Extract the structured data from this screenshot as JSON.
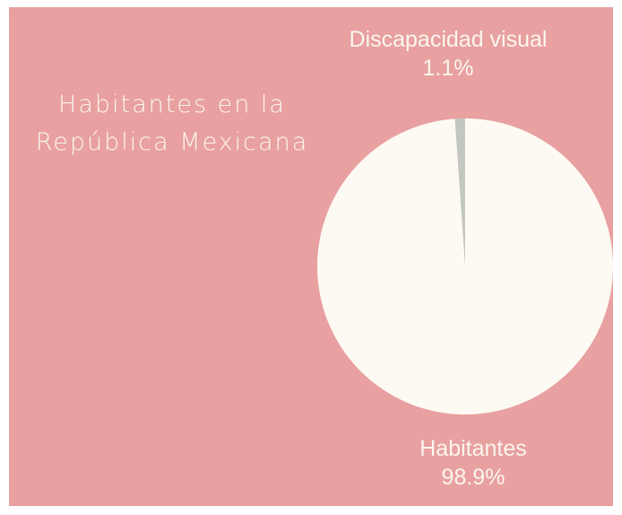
{
  "title_lines": [
    "Habitantes en la",
    "República Mexicana"
  ],
  "colors": {
    "background": "#e8a0a0",
    "text": "#fbf6ee"
  },
  "chart_data": {
    "type": "pie",
    "title": "Habitantes en la República Mexicana",
    "slices": [
      {
        "label": "Discapacidad visual",
        "value": 1.1,
        "value_label": "1.1%",
        "color": "#c2c7c0"
      },
      {
        "label": "Habitantes",
        "value": 98.9,
        "value_label": "98.9%",
        "color": "#fdfaf3"
      }
    ],
    "start_angle_deg": -4,
    "direction": "clockwise",
    "legend": "none"
  }
}
